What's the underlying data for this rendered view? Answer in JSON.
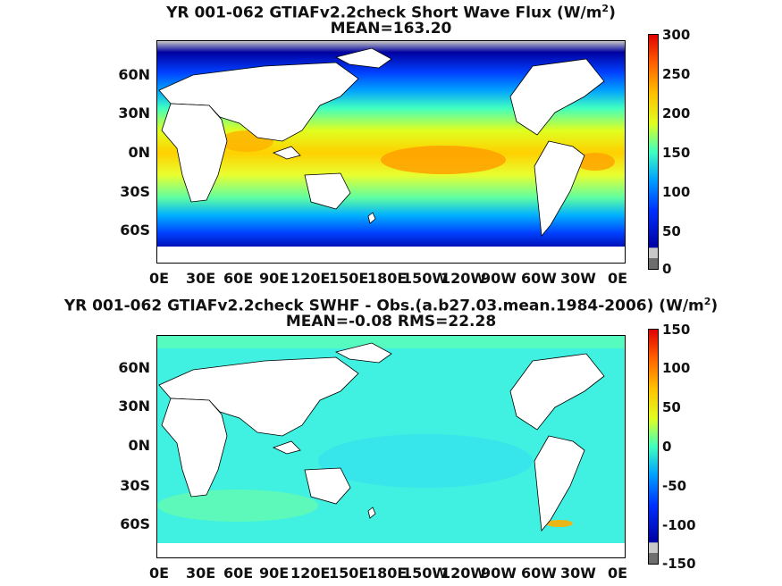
{
  "maps": [
    {
      "id": "sw_flux",
      "title_main": "YR 001-062 GTIAFv2.2check  Short Wave Flux (W/m",
      "title_sup": "2",
      "title_end": ")",
      "stat_line": "MEAN=163.20",
      "y_ticks": [
        "60N",
        "30N",
        "0N",
        "30S",
        "60S"
      ],
      "x_ticks": [
        "0E",
        "30E",
        "60E",
        "90E",
        "120E",
        "150E",
        "180E",
        "150W",
        "120W",
        "90W",
        "60W",
        "30W",
        "0E"
      ],
      "colorbar_ticks": [
        "300",
        "250",
        "200",
        "150",
        "100",
        "50",
        "0"
      ],
      "colorbar_range": [
        0,
        300
      ]
    },
    {
      "id": "sw_diff",
      "title_main": "YR 001-062 GTIAFv2.2check SWHF - Obs.(a.b27.03.mean.1984-2006) (W/m",
      "title_sup": "2",
      "title_end": ")",
      "stat_line": "MEAN=-0.08 RMS=22.28",
      "y_ticks": [
        "60N",
        "30N",
        "0N",
        "30S",
        "60S"
      ],
      "x_ticks": [
        "0E",
        "30E",
        "60E",
        "90E",
        "120E",
        "150E",
        "180E",
        "150W",
        "120W",
        "90W",
        "60W",
        "30W",
        "0E"
      ],
      "colorbar_ticks": [
        "150",
        "100",
        "50",
        "0",
        "-50",
        "-100",
        "-150"
      ],
      "colorbar_range": [
        -150,
        150
      ]
    }
  ],
  "colors": {
    "land": "#ffffff",
    "palette": [
      "#6e6e6e",
      "#c8c8c8",
      "#0000a0",
      "#0020e0",
      "#0060ff",
      "#00a0ff",
      "#00d8ff",
      "#40ffc0",
      "#a0ff60",
      "#e0ff20",
      "#ffe000",
      "#ffa000",
      "#ff6000",
      "#ff2000",
      "#e00000"
    ]
  }
}
